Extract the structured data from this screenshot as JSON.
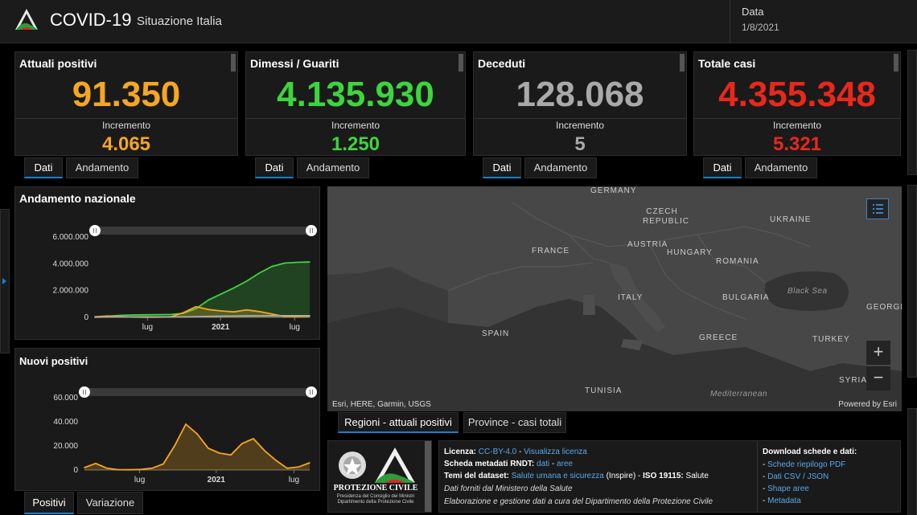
{
  "header": {
    "title": "COVID-19",
    "subtitle": "Situazione Italia",
    "date_label": "Data",
    "date_value": "1/8/2021"
  },
  "cards": [
    {
      "title": "Attuali positivi",
      "value": "91.350",
      "inc_label": "Incremento",
      "inc_value": "4.065",
      "color": "#f5a623"
    },
    {
      "title": "Dimessi / Guariti",
      "value": "4.135.930",
      "inc_label": "Incremento",
      "inc_value": "1.250",
      "color": "#3dd53d"
    },
    {
      "title": "Deceduti",
      "value": "128.068",
      "inc_label": "Incremento",
      "inc_value": "5",
      "color": "#a9a9a9"
    },
    {
      "title": "Totale casi",
      "value": "4.355.348",
      "inc_label": "Incremento",
      "inc_value": "5.321",
      "color": "#e8281b"
    }
  ],
  "card_tabs": {
    "dati": "Dati",
    "andamento": "Andamento"
  },
  "chart_data": [
    {
      "type": "area",
      "title": "Andamento nazionale",
      "x": [
        "2020-03",
        "2020-04",
        "2020-05",
        "2020-06",
        "2020-07",
        "2020-08",
        "2020-09",
        "2020-10",
        "2020-11",
        "2020-12",
        "2021-01",
        "2021-02",
        "2021-03",
        "2021-04",
        "2021-05",
        "2021-06",
        "2021-07",
        "2021-08"
      ],
      "x_ticks": [
        "lug",
        "2021",
        "lug"
      ],
      "y_ticks": [
        "6.000.000",
        "4.000.000",
        "2.000.000",
        "0"
      ],
      "ylim": [
        0,
        6000000
      ],
      "series": [
        {
          "color": "#3dd53d",
          "values": [
            5000,
            80000,
            150000,
            180000,
            195000,
            205000,
            215000,
            300000,
            650000,
            1300000,
            1750000,
            2200000,
            2700000,
            3300000,
            3800000,
            4050000,
            4110000,
            4135930
          ]
        },
        {
          "color": "#f5a623",
          "values": [
            40000,
            100000,
            60000,
            25000,
            13000,
            20000,
            45000,
            350000,
            800000,
            580000,
            480000,
            410000,
            560000,
            430000,
            250000,
            60000,
            50000,
            91350
          ]
        },
        {
          "color": "#a9a9a9",
          "values": [
            12000,
            28000,
            33000,
            35000,
            35000,
            35500,
            36000,
            38500,
            55000,
            75000,
            88000,
            97000,
            108000,
            120000,
            126000,
            127500,
            128000,
            128068
          ]
        }
      ]
    },
    {
      "type": "area",
      "title": "Nuovi positivi",
      "x": [
        "2020-03",
        "2020-04",
        "2020-05",
        "2020-06",
        "2020-07",
        "2020-08",
        "2020-09",
        "2020-10",
        "2020-10b",
        "2020-11",
        "2020-11b",
        "2020-12",
        "2021-01",
        "2021-02",
        "2021-03",
        "2021-03b",
        "2021-04",
        "2021-05",
        "2021-06",
        "2021-07",
        "2021-08"
      ],
      "x_ticks": [
        "lug",
        "2021",
        "lug"
      ],
      "y_ticks": [
        "60.000",
        "40.000",
        "20.000",
        "0"
      ],
      "ylim": [
        0,
        60000
      ],
      "series": [
        {
          "color": "#f5a623",
          "values": [
            2000,
            5500,
            1500,
            300,
            200,
            500,
            1500,
            5000,
            20000,
            38000,
            30000,
            18000,
            14000,
            12500,
            22000,
            26000,
            16000,
            8000,
            1500,
            2500,
            6000
          ]
        }
      ]
    }
  ],
  "chart_tabs": {
    "positivi": "Positivi",
    "variazione": "Variazione"
  },
  "map": {
    "labels": [
      "GERMANY",
      "CZECH REPUBLIC",
      "UKRAINE",
      "FRANCE",
      "AUSTRIA",
      "HUNGARY",
      "ROMANIA",
      "ITALY",
      "BULGARIA",
      "SPAIN",
      "GREECE",
      "TURKEY",
      "TUNISIA",
      "SYRIA",
      "GEORGI"
    ],
    "sea_labels": [
      "Black Sea",
      "Mediterranean"
    ],
    "attribution": "Esri, HERE, Garmin, USGS",
    "powered": "Powered by Esri",
    "zoom_in": "+",
    "zoom_out": "−"
  },
  "map_tabs": {
    "regioni": "Regioni - attuali positivi",
    "province": "Province - casi totali"
  },
  "pc": {
    "name": "PROTEZIONE CIVILE",
    "sub": "Presidenza del Consiglio dei Ministri Dipartimento della Protezione Civile"
  },
  "info": {
    "licenza_label": "Licenza:",
    "licenza_val": "CC-BY-4.0",
    "licenza_sep": " - ",
    "licenza_link": "Visualizza licenza",
    "scheda_label": "Scheda metadati RNDT:",
    "scheda_dati": "dati",
    "scheda_sep": " - ",
    "scheda_aree": "aree",
    "temi_label": "Temi del dataset:",
    "temi_link": "Salute umana e sicurezza",
    "temi_inspire": "(Inspire) - ",
    "temi_iso": "ISO 19115:",
    "temi_salute": "Salute",
    "dati_forniti": "Dati forniti dal Ministero della Salute",
    "elaborazione": "Elaborazione e gestione dati a cura del Dipartimento della Protezione Civile",
    "download_title": "Download schede e dati:",
    "downloads": [
      "Schede riepilogo PDF",
      "Dati CSV / JSON",
      "Shape aree",
      "Metadata"
    ]
  }
}
